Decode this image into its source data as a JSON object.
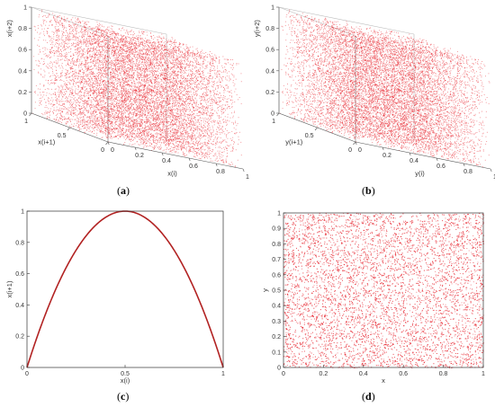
{
  "panels": {
    "a": {
      "caption_open": "(",
      "caption_letter": "a",
      "caption_close": ")"
    },
    "b": {
      "caption_open": "(",
      "caption_letter": "b",
      "caption_close": ")"
    },
    "c": {
      "caption_open": "(",
      "caption_letter": "c",
      "caption_close": ")"
    },
    "d": {
      "caption_open": "(",
      "caption_letter": "d",
      "caption_close": ")"
    }
  },
  "chart_data": [
    {
      "id": "a",
      "type": "scatter",
      "dimensions": 3,
      "description": "",
      "axes": {
        "x": {
          "label": "x(i)",
          "range": [
            0,
            1
          ],
          "ticks": [
            "0",
            "0.2",
            "0.4",
            "0.6",
            "0.8",
            "1"
          ]
        },
        "y": {
          "label": "x(i+1)",
          "range": [
            0,
            1
          ],
          "ticks": [
            "0",
            "0.5",
            "1"
          ]
        },
        "z": {
          "label": "x(i+2)",
          "range": [
            0,
            1
          ],
          "ticks": [
            "0",
            "0.2",
            "0.4",
            "0.6",
            "0.8",
            "1"
          ]
        }
      },
      "color": "#e8202a",
      "distribution": "uniform cube fill"
    },
    {
      "id": "b",
      "type": "scatter",
      "dimensions": 3,
      "axes": {
        "x": {
          "label": "y(i)",
          "range": [
            0,
            1
          ],
          "ticks": [
            "0",
            "0.2",
            "0.4",
            "0.6",
            "0.8",
            "1"
          ]
        },
        "y": {
          "label": "y(i+1)",
          "range": [
            0,
            1
          ],
          "ticks": [
            "0",
            "0.5",
            "1"
          ]
        },
        "z": {
          "label": "y(i+2)",
          "range": [
            0,
            1
          ],
          "ticks": [
            "0",
            "0.2",
            "0.4",
            "0.6",
            "0.8",
            "1"
          ]
        }
      },
      "color": "#e8202a",
      "distribution": "uniform cube fill"
    },
    {
      "id": "c",
      "type": "line",
      "function": "x(i+1) = 4 x(i) (1 - x(i))",
      "axes": {
        "x": {
          "label": "x(i)",
          "range": [
            0,
            1
          ],
          "ticks": [
            "0",
            "0.5",
            "1"
          ]
        },
        "y": {
          "label": "x(i+1)",
          "range": [
            0,
            1
          ],
          "ticks": [
            "0",
            "0.2",
            "0.4",
            "0.6",
            "0.8",
            "1"
          ]
        }
      },
      "x": [
        0,
        0.1,
        0.2,
        0.3,
        0.4,
        0.5,
        0.6,
        0.7,
        0.8,
        0.9,
        1.0
      ],
      "y": [
        0,
        0.36,
        0.64,
        0.84,
        0.96,
        1.0,
        0.96,
        0.84,
        0.64,
        0.36,
        0
      ],
      "color": "#b22222"
    },
    {
      "id": "d",
      "type": "scatter",
      "dimensions": 2,
      "axes": {
        "x": {
          "label": "x",
          "range": [
            0,
            1
          ],
          "ticks": [
            "0",
            "0.2",
            "0.4",
            "0.6",
            "0.8",
            "1"
          ]
        },
        "y": {
          "label": "y",
          "range": [
            0,
            1
          ],
          "ticks": [
            "0",
            "0.1",
            "0.2",
            "0.3",
            "0.4",
            "0.5",
            "0.6",
            "0.7",
            "0.8",
            "0.9",
            "1"
          ]
        }
      },
      "color": "#e8202a",
      "distribution": "uniform square fill"
    }
  ]
}
